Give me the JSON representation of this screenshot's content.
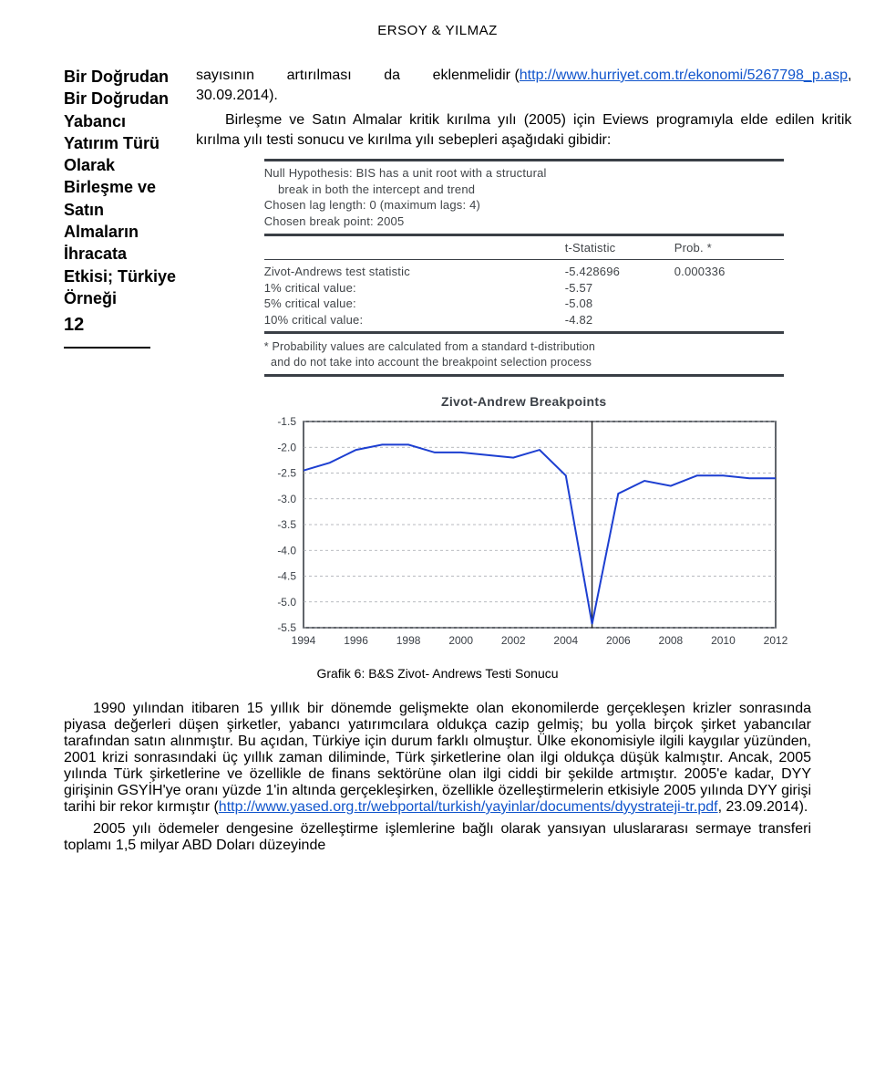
{
  "running_head": "ERSOY & YILMAZ",
  "sidebar": {
    "lines": [
      "Bir Doğrudan",
      "Bir Doğrudan",
      "Yabancı",
      "Yatırım Türü",
      "Olarak",
      "Birleşme ve",
      "Satın",
      "Almaların",
      "İhracata",
      "Etkisi; Türkiye",
      "Örneği"
    ],
    "page_number": "12"
  },
  "intro": {
    "prefix": "sayısının        artırılması        da        eklenmelidir (",
    "url": "http://www.hurriyet.com.tr/ekonomi/5267798_p.asp",
    "suffix": ", 30.09.2014).",
    "para2": "Birleşme ve Satın Almalar kritik kırılma yılı (2005) için Eviews programıyla elde edilen kritik kırılma yılı testi sonucu ve kırılma yılı sebepleri aşağıdaki gibidir:"
  },
  "eviews": {
    "head": [
      "Null Hypothesis: BIS has a unit root with a structural",
      "    break in both the intercept and trend",
      "Chosen lag length: 0 (maximum lags: 4)",
      "Chosen break point: 2005"
    ],
    "col_t": "t-Statistic",
    "col_p": "Prob. *",
    "rows": [
      {
        "label": "Zivot-Andrews test statistic",
        "t": "-5.428696",
        "p": "0.000336"
      },
      {
        "label": "1% critical value:",
        "t": "-5.57",
        "p": ""
      },
      {
        "label": "5% critical value:",
        "t": "-5.08",
        "p": ""
      },
      {
        "label": "10% critical value:",
        "t": "-4.82",
        "p": ""
      }
    ],
    "foot": [
      "* Probability values are calculated from a standard t-distribution",
      "  and do not take into account the breakpoint selection process"
    ]
  },
  "chart": {
    "title": "Zivot-Andrew Breakpoints",
    "type": "line",
    "x_ticks": [
      1994,
      1996,
      1998,
      2000,
      2002,
      2004,
      2006,
      2008,
      2010,
      2012
    ],
    "y_ticks": [
      -1.5,
      -2.0,
      -2.5,
      -3.0,
      -3.5,
      -4.0,
      -4.5,
      -5.0,
      -5.5
    ],
    "xlim": [
      1994,
      2012
    ],
    "ylim": [
      -5.5,
      -1.5
    ],
    "series_color": "#1d3fd1",
    "grid_color": "#a0a4aa",
    "frame_color": "#3a3f46",
    "background_color": "#ffffff",
    "line_width": 2,
    "vertical_marker_x": 2005,
    "points": [
      {
        "x": 1994,
        "y": -2.45
      },
      {
        "x": 1995,
        "y": -2.3
      },
      {
        "x": 1996,
        "y": -2.05
      },
      {
        "x": 1997,
        "y": -1.95
      },
      {
        "x": 1998,
        "y": -1.95
      },
      {
        "x": 1999,
        "y": -2.1
      },
      {
        "x": 2000,
        "y": -2.1
      },
      {
        "x": 2001,
        "y": -2.15
      },
      {
        "x": 2002,
        "y": -2.2
      },
      {
        "x": 2003,
        "y": -2.05
      },
      {
        "x": 2004,
        "y": -2.55
      },
      {
        "x": 2005,
        "y": -5.43
      },
      {
        "x": 2006,
        "y": -2.9
      },
      {
        "x": 2007,
        "y": -2.65
      },
      {
        "x": 2008,
        "y": -2.75
      },
      {
        "x": 2009,
        "y": -2.55
      },
      {
        "x": 2010,
        "y": -2.55
      },
      {
        "x": 2011,
        "y": -2.6
      },
      {
        "x": 2012,
        "y": -2.6
      }
    ]
  },
  "caption": "Grafik 6: B&S Zivot- Andrews Testi Sonucu",
  "body": {
    "p1": "1990 yılından itibaren 15 yıllık bir dönemde gelişmekte olan ekonomilerde gerçekleşen krizler sonrasında piyasa değerleri düşen şirketler, yabancı yatırımcılara oldukça cazip gelmiş; bu yolla birçok şirket yabancılar tarafından satın alınmıştır. Bu açıdan, Türkiye için durum farklı olmuştur. Ülke ekonomisiyle ilgili kaygılar yüzünden, 2001 krizi sonrasındaki üç yıllık zaman diliminde, Türk şirketlerine olan ilgi oldukça düşük kalmıştır. Ancak, 2005 yılında Türk şirketlerine ve özellikle de finans sektörüne olan ilgi ciddi bir şekilde artmıştır. 2005'e kadar, DYY girişinin GSYİH'ye oranı yüzde 1'in altında gerçekleşirken, özellikle özelleştirmelerin etkisiyle 2005 yılında DYY girişi tarihi bir rekor kırmıştır",
    "url": "http://www.yased.org.tr/webportal/turkish/yayinlar/documents/dyystrateji-tr.pdf",
    "p1_tail": "23.09.2014).",
    "p2": "2005 yılı ödemeler dengesine özelleştirme işlemlerine bağlı olarak yansıyan uluslararası   sermaye   transferi   toplamı   1,5   milyar   ABD   Doları   düzeyinde"
  }
}
